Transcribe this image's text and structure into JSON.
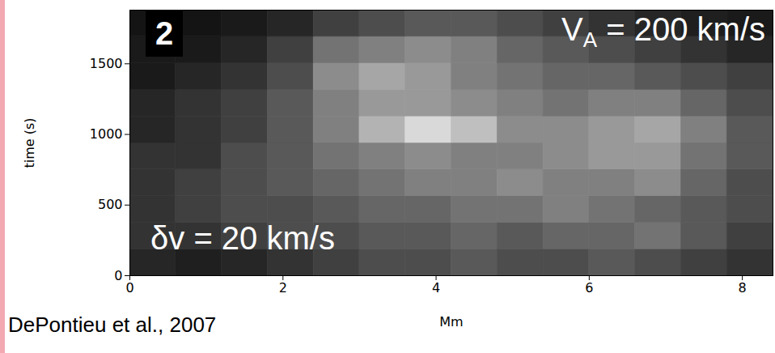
{
  "chart_data": {
    "type": "heatmap",
    "x_label": "Mm",
    "y_label": "time (s)",
    "xlim": [
      0,
      8.4
    ],
    "ylim": [
      0,
      1880
    ],
    "xticks": [
      0,
      2,
      4,
      6,
      8
    ],
    "yticks": [
      0,
      500,
      1000,
      1500
    ],
    "x_bins": [
      0,
      0.6,
      1.2,
      1.8,
      2.4,
      3.0,
      3.6,
      4.2,
      4.8,
      5.4,
      6.0,
      6.6,
      7.2,
      7.8,
      8.4
    ],
    "y_bins": [
      0,
      188,
      376,
      564,
      752,
      940,
      1128,
      1316,
      1504,
      1692,
      1880
    ],
    "cells": [
      [
        0.15,
        0.12,
        0.15,
        0.2,
        0.25,
        0.3,
        0.3,
        0.35,
        0.3,
        0.3,
        0.35,
        0.3,
        0.25,
        0.2
      ],
      [
        0.2,
        0.2,
        0.25,
        0.3,
        0.3,
        0.35,
        0.35,
        0.4,
        0.35,
        0.4,
        0.4,
        0.45,
        0.35,
        0.25
      ],
      [
        0.2,
        0.25,
        0.3,
        0.3,
        0.35,
        0.4,
        0.4,
        0.45,
        0.45,
        0.5,
        0.45,
        0.4,
        0.35,
        0.3
      ],
      [
        0.2,
        0.25,
        0.3,
        0.35,
        0.4,
        0.45,
        0.5,
        0.5,
        0.55,
        0.5,
        0.5,
        0.55,
        0.4,
        0.3
      ],
      [
        0.2,
        0.2,
        0.3,
        0.35,
        0.45,
        0.5,
        0.55,
        0.5,
        0.5,
        0.55,
        0.6,
        0.6,
        0.45,
        0.35
      ],
      [
        0.15,
        0.2,
        0.25,
        0.35,
        0.5,
        0.7,
        0.85,
        0.75,
        0.55,
        0.55,
        0.6,
        0.65,
        0.5,
        0.35
      ],
      [
        0.15,
        0.2,
        0.25,
        0.35,
        0.5,
        0.6,
        0.6,
        0.55,
        0.5,
        0.45,
        0.5,
        0.5,
        0.4,
        0.3
      ],
      [
        0.1,
        0.15,
        0.2,
        0.3,
        0.55,
        0.65,
        0.6,
        0.5,
        0.45,
        0.4,
        0.4,
        0.35,
        0.3,
        0.25
      ],
      [
        0.1,
        0.1,
        0.15,
        0.25,
        0.45,
        0.5,
        0.55,
        0.5,
        0.4,
        0.35,
        0.3,
        0.25,
        0.2,
        0.15
      ],
      [
        0.08,
        0.08,
        0.1,
        0.15,
        0.25,
        0.3,
        0.35,
        0.35,
        0.3,
        0.25,
        0.2,
        0.15,
        0.12,
        0.1
      ]
    ],
    "zlim": [
      0,
      1
    ],
    "panel": "2",
    "annotations": [
      {
        "text": "V",
        "subscript": "A",
        "text_after": " = 200 km/s"
      },
      {
        "text": "δv = 20 km/s"
      }
    ],
    "caption": "DePontieu et al., 2007"
  }
}
